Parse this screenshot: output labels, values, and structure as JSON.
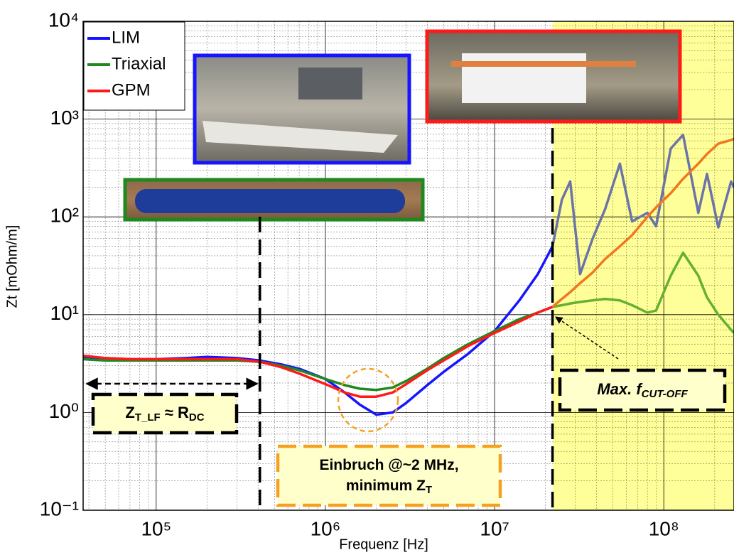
{
  "chart_data": {
    "type": "line",
    "x_label": "Frequenz [Hz]",
    "y_label": "Zt [mOhm/m]",
    "log_x": true,
    "log_y": true,
    "grid": true,
    "minor_grid": true,
    "legend": "upper left",
    "xlim": [
      37000,
      260000000
    ],
    "ylim": [
      0.1,
      10000
    ],
    "xticks": [
      {
        "value": 100000,
        "label": "10⁵"
      },
      {
        "value": 1000000,
        "label": "10⁶"
      },
      {
        "value": 10000000,
        "label": "10⁷"
      },
      {
        "value": 100000000,
        "label": "10⁸"
      }
    ],
    "yticks": [
      {
        "value": 0.1,
        "label": "10⁻¹"
      },
      {
        "value": 1,
        "label": "10⁰"
      },
      {
        "value": 10,
        "label": "10¹"
      },
      {
        "value": 100,
        "label": "10²"
      },
      {
        "value": 1000,
        "label": "10³"
      },
      {
        "value": 10000,
        "label": "10⁴"
      }
    ],
    "shaded_region": {
      "from": 22000000,
      "color": "#ffff99"
    },
    "reference_lines": [
      {
        "x": 410000
      },
      {
        "x": 22000000
      }
    ],
    "x": [
      37000,
      50000,
      70000,
      100000,
      150000,
      200000,
      300000,
      410000,
      550000,
      700000,
      1000000,
      1300000,
      1600000,
      2000000,
      2500000,
      3000000,
      4000000,
      5000000,
      7000000,
      10000000,
      14000000,
      18000000,
      22000000,
      25000000,
      28000000,
      32000000,
      38000000,
      45000000,
      55000000,
      65000000,
      80000000,
      90000000,
      110000000,
      130000000,
      160000000,
      180000000,
      210000000,
      250000000,
      260000000
    ],
    "series": [
      {
        "name": "LIM",
        "color": "#1515ff",
        "cutoff_color": "#6b74a8",
        "values": [
          3.7,
          3.6,
          3.5,
          3.5,
          3.6,
          3.7,
          3.6,
          3.4,
          3.1,
          2.8,
          2.2,
          1.6,
          1.2,
          0.95,
          1.0,
          1.25,
          1.9,
          2.6,
          4.0,
          6.8,
          14,
          26,
          50,
          150,
          230,
          26,
          60,
          120,
          350,
          90,
          110,
          80,
          500,
          690,
          110,
          275,
          78,
          230,
          200
        ]
      },
      {
        "name": "Triaxial",
        "color": "#1e8a1e",
        "cutoff_color": "#66b030",
        "values": [
          3.5,
          3.4,
          3.4,
          3.4,
          3.4,
          3.4,
          3.4,
          3.3,
          3.0,
          2.7,
          2.2,
          1.9,
          1.75,
          1.7,
          1.8,
          2.1,
          2.8,
          3.6,
          5.0,
          6.8,
          9.0,
          10.5,
          12,
          12.5,
          13,
          13.5,
          14,
          14.5,
          14,
          12.5,
          10.5,
          11,
          25,
          43,
          25,
          15,
          10,
          7,
          6.5
        ]
      },
      {
        "name": "GPM",
        "color": "#ff1a1a",
        "cutoff_color": "#f07820",
        "values": [
          3.8,
          3.6,
          3.5,
          3.5,
          3.5,
          3.5,
          3.5,
          3.3,
          2.9,
          2.5,
          1.95,
          1.6,
          1.45,
          1.45,
          1.6,
          1.95,
          2.7,
          3.4,
          4.8,
          6.5,
          8.5,
          10.5,
          12,
          14.5,
          17,
          21,
          27,
          37,
          50,
          65,
          100,
          125,
          175,
          245,
          350,
          440,
          560,
          610,
          630
        ]
      }
    ],
    "annotations": [
      {
        "lines": [
          [
            {
              "text": "Z"
            },
            {
              "text": "T_LF",
              "sub": true
            },
            {
              "text": " ≈ R"
            },
            {
              "text": "DC",
              "sub": true
            }
          ]
        ]
      },
      {
        "lines": [
          [
            {
              "text": "Einbruch @~2 MHz,"
            }
          ],
          [
            {
              "text": "minimum Z"
            },
            {
              "text": "T",
              "sub": true
            }
          ]
        ]
      },
      {
        "lines": [
          [
            {
              "text": "Max. f"
            },
            {
              "text": "CUT-OFF",
              "sub": true
            }
          ]
        ]
      }
    ]
  }
}
